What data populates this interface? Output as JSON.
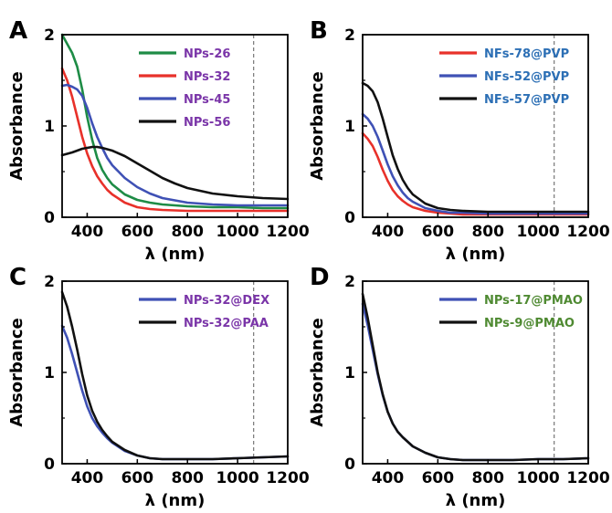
{
  "chart_data": [
    {
      "panel": "A",
      "type": "line",
      "xlabel": "λ (nm)",
      "ylabel": "Absorbance",
      "xlim": [
        300,
        1200
      ],
      "ylim": [
        0,
        2
      ],
      "xticks": [
        400,
        600,
        800,
        1000,
        1200
      ],
      "yticks": [
        0,
        1,
        2
      ],
      "vline_x": 1064,
      "legend_position": "top-right",
      "series": [
        {
          "name": "NPs-26",
          "color": "#1e8c46",
          "x": [
            300,
            320,
            340,
            360,
            380,
            400,
            420,
            440,
            460,
            480,
            500,
            550,
            600,
            650,
            700,
            800,
            900,
            1000,
            1100,
            1200
          ],
          "y": [
            2.0,
            1.9,
            1.8,
            1.65,
            1.4,
            1.1,
            0.85,
            0.65,
            0.52,
            0.43,
            0.36,
            0.25,
            0.19,
            0.16,
            0.14,
            0.12,
            0.11,
            0.11,
            0.1,
            0.1
          ]
        },
        {
          "name": "NPs-32",
          "color": "#e8312a",
          "x": [
            300,
            320,
            340,
            360,
            380,
            400,
            420,
            440,
            460,
            480,
            500,
            550,
            600,
            650,
            700,
            800,
            900,
            1000,
            1100,
            1200
          ],
          "y": [
            1.63,
            1.5,
            1.32,
            1.1,
            0.88,
            0.7,
            0.56,
            0.45,
            0.37,
            0.3,
            0.25,
            0.16,
            0.11,
            0.09,
            0.08,
            0.07,
            0.07,
            0.07,
            0.07,
            0.07
          ]
        },
        {
          "name": "NPs-45",
          "color": "#3f51b5",
          "x": [
            300,
            320,
            340,
            360,
            380,
            400,
            420,
            440,
            460,
            480,
            500,
            550,
            600,
            650,
            700,
            800,
            900,
            1000,
            1100,
            1200
          ],
          "y": [
            1.44,
            1.45,
            1.43,
            1.4,
            1.33,
            1.2,
            1.03,
            0.88,
            0.76,
            0.65,
            0.57,
            0.43,
            0.33,
            0.26,
            0.21,
            0.16,
            0.14,
            0.13,
            0.13,
            0.13
          ]
        },
        {
          "name": "NPs-56",
          "color": "#111111",
          "x": [
            300,
            340,
            380,
            420,
            440,
            460,
            500,
            550,
            600,
            650,
            700,
            750,
            800,
            900,
            1000,
            1100,
            1200
          ],
          "y": [
            0.68,
            0.71,
            0.75,
            0.77,
            0.77,
            0.76,
            0.73,
            0.67,
            0.59,
            0.51,
            0.43,
            0.37,
            0.32,
            0.26,
            0.23,
            0.21,
            0.2
          ]
        }
      ]
    },
    {
      "panel": "B",
      "type": "line",
      "xlabel": "λ (nm)",
      "ylabel": "Absorbance",
      "xlim": [
        300,
        1200
      ],
      "ylim": [
        0,
        2
      ],
      "xticks": [
        400,
        600,
        800,
        1000,
        1200
      ],
      "yticks": [
        0,
        1,
        2
      ],
      "vline_x": 1064,
      "legend_position": "top-right",
      "series": [
        {
          "name": "NFs-78@PVP",
          "color": "#e8312a",
          "x": [
            300,
            320,
            340,
            360,
            380,
            400,
            420,
            440,
            460,
            480,
            500,
            550,
            600,
            650,
            700,
            800,
            900,
            1000,
            1100,
            1200
          ],
          "y": [
            0.92,
            0.86,
            0.78,
            0.66,
            0.52,
            0.4,
            0.3,
            0.23,
            0.18,
            0.14,
            0.11,
            0.07,
            0.05,
            0.04,
            0.03,
            0.03,
            0.03,
            0.03,
            0.03,
            0.03
          ]
        },
        {
          "name": "NFs-52@PVP",
          "color": "#3f51b5",
          "x": [
            300,
            320,
            340,
            360,
            380,
            400,
            420,
            440,
            460,
            480,
            500,
            550,
            600,
            650,
            700,
            800,
            900,
            1000,
            1100,
            1200
          ],
          "y": [
            1.13,
            1.08,
            1.0,
            0.88,
            0.73,
            0.58,
            0.45,
            0.35,
            0.27,
            0.21,
            0.17,
            0.1,
            0.07,
            0.05,
            0.05,
            0.04,
            0.04,
            0.04,
            0.04,
            0.04
          ]
        },
        {
          "name": "NFs-57@PVP",
          "color": "#111111",
          "x": [
            300,
            320,
            340,
            360,
            380,
            400,
            420,
            440,
            460,
            480,
            500,
            550,
            600,
            650,
            700,
            800,
            900,
            1000,
            1100,
            1200
          ],
          "y": [
            1.47,
            1.44,
            1.38,
            1.26,
            1.08,
            0.88,
            0.68,
            0.53,
            0.41,
            0.32,
            0.25,
            0.15,
            0.1,
            0.08,
            0.07,
            0.06,
            0.06,
            0.06,
            0.06,
            0.06
          ]
        }
      ]
    },
    {
      "panel": "C",
      "type": "line",
      "xlabel": "λ (nm)",
      "ylabel": "Absorbance",
      "xlim": [
        300,
        1200
      ],
      "ylim": [
        0,
        2
      ],
      "xticks": [
        400,
        600,
        800,
        1000,
        1200
      ],
      "yticks": [
        0,
        1,
        2
      ],
      "vline_x": 1064,
      "legend_position": "top-right",
      "series": [
        {
          "name": "NPs-32@DEX",
          "color": "#3f51b5",
          "x": [
            300,
            320,
            340,
            360,
            380,
            400,
            420,
            440,
            460,
            480,
            500,
            550,
            600,
            650,
            700,
            800,
            900,
            1000,
            1100,
            1200
          ],
          "y": [
            1.51,
            1.38,
            1.2,
            1.0,
            0.8,
            0.63,
            0.5,
            0.41,
            0.34,
            0.28,
            0.23,
            0.14,
            0.09,
            0.06,
            0.05,
            0.05,
            0.05,
            0.06,
            0.07,
            0.08
          ]
        },
        {
          "name": "NPs-32@PAA",
          "color": "#111111",
          "x": [
            300,
            320,
            340,
            360,
            380,
            400,
            420,
            440,
            460,
            480,
            500,
            550,
            600,
            650,
            700,
            800,
            900,
            1000,
            1100,
            1200
          ],
          "y": [
            1.88,
            1.72,
            1.5,
            1.25,
            0.98,
            0.75,
            0.58,
            0.46,
            0.37,
            0.3,
            0.24,
            0.15,
            0.09,
            0.06,
            0.05,
            0.05,
            0.05,
            0.06,
            0.07,
            0.08
          ]
        }
      ]
    },
    {
      "panel": "D",
      "type": "line",
      "xlabel": "λ (nm)",
      "ylabel": "Absorbance",
      "xlim": [
        300,
        1200
      ],
      "ylim": [
        0,
        2
      ],
      "xticks": [
        400,
        600,
        800,
        1000,
        1200
      ],
      "yticks": [
        0,
        1,
        2
      ],
      "vline_x": 1064,
      "legend_position": "top-right",
      "series": [
        {
          "name": "NPs-17@PMAO",
          "color": "#3f51b5",
          "x": [
            300,
            320,
            340,
            360,
            380,
            400,
            420,
            440,
            460,
            480,
            500,
            550,
            600,
            650,
            700,
            800,
            900,
            1000,
            1100,
            1200
          ],
          "y": [
            1.75,
            1.52,
            1.25,
            0.98,
            0.75,
            0.57,
            0.44,
            0.35,
            0.29,
            0.24,
            0.19,
            0.12,
            0.07,
            0.05,
            0.04,
            0.04,
            0.04,
            0.05,
            0.05,
            0.06
          ]
        },
        {
          "name": "NPs-9@PMAO",
          "color": "#111111",
          "x": [
            300,
            320,
            340,
            360,
            380,
            400,
            420,
            440,
            460,
            480,
            500,
            550,
            600,
            650,
            700,
            800,
            900,
            1000,
            1100,
            1200
          ],
          "y": [
            1.86,
            1.6,
            1.3,
            1.0,
            0.76,
            0.57,
            0.44,
            0.35,
            0.29,
            0.24,
            0.19,
            0.12,
            0.07,
            0.05,
            0.04,
            0.04,
            0.04,
            0.05,
            0.05,
            0.06
          ]
        }
      ]
    }
  ],
  "style": {
    "legend_text_colors": {
      "A": "#7a35a8",
      "B": "#2c6fb5",
      "C": "#7a35a8",
      "D": "#4f8a32"
    },
    "axis_color": "#000000",
    "vline_color": "#777777"
  }
}
